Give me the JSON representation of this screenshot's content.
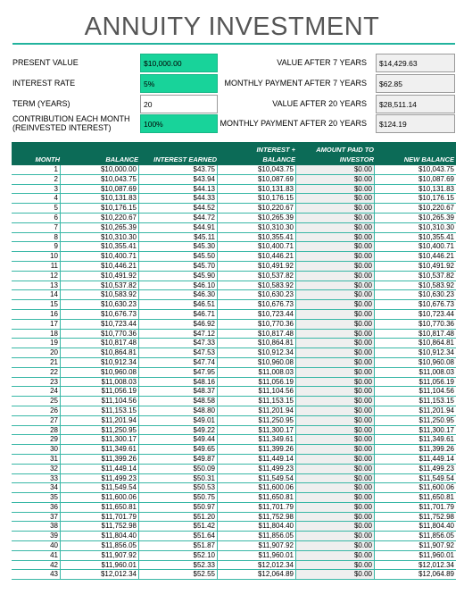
{
  "title": "ANNUITY INVESTMENT",
  "inputs": {
    "present_value_label": "PRESENT VALUE",
    "present_value": "$10,000.00",
    "interest_rate_label": "INTEREST RATE",
    "interest_rate": "5%",
    "term_label": "TERM (YEARS)",
    "term": "20",
    "contribution_label_1": "CONTRIBUTION EACH MONTH",
    "contribution_label_2": "(REINVESTED INTEREST)",
    "contribution": "100%"
  },
  "outputs": {
    "value_7_label": "VALUE AFTER 7 YEARS",
    "value_7": "$14,429.63",
    "payment_7_label": "MONTHLY PAYMENT AFTER 7 YEARS",
    "payment_7": "$62.85",
    "value_20_label": "VALUE AFTER 20 YEARS",
    "value_20": "$28,511.14",
    "payment_20_label": "MONTHLY PAYMENT AFTER 20 YEARS",
    "payment_20": "$124.19"
  },
  "table": {
    "headers": {
      "month": "MONTH",
      "balance": "BALANCE",
      "interest_earned": "INTEREST EARNED",
      "interest_balance_1": "INTEREST +",
      "interest_balance_2": "BALANCE",
      "paid_1": "AMOUNT PAID TO",
      "paid_2": "INVESTOR",
      "new_balance": "NEW BALANCE"
    },
    "rows": [
      [
        "1",
        "$10,000.00",
        "$43.75",
        "$10,043.75",
        "$0.00",
        "$10,043.75"
      ],
      [
        "2",
        "$10,043.75",
        "$43.94",
        "$10,087.69",
        "$0.00",
        "$10,087.69"
      ],
      [
        "3",
        "$10,087.69",
        "$44.13",
        "$10,131.83",
        "$0.00",
        "$10,131.83"
      ],
      [
        "4",
        "$10,131.83",
        "$44.33",
        "$10,176.15",
        "$0.00",
        "$10,176.15"
      ],
      [
        "5",
        "$10,176.15",
        "$44.52",
        "$10,220.67",
        "$0.00",
        "$10,220.67"
      ],
      [
        "6",
        "$10,220.67",
        "$44.72",
        "$10,265.39",
        "$0.00",
        "$10,265.39"
      ],
      [
        "7",
        "$10,265.39",
        "$44.91",
        "$10,310.30",
        "$0.00",
        "$10,310.30"
      ],
      [
        "8",
        "$10,310.30",
        "$45.11",
        "$10,355.41",
        "$0.00",
        "$10,355.41"
      ],
      [
        "9",
        "$10,355.41",
        "$45.30",
        "$10,400.71",
        "$0.00",
        "$10,400.71"
      ],
      [
        "10",
        "$10,400.71",
        "$45.50",
        "$10,446.21",
        "$0.00",
        "$10,446.21"
      ],
      [
        "11",
        "$10,446.21",
        "$45.70",
        "$10,491.92",
        "$0.00",
        "$10,491.92"
      ],
      [
        "12",
        "$10,491.92",
        "$45.90",
        "$10,537.82",
        "$0.00",
        "$10,537.82"
      ],
      [
        "13",
        "$10,537.82",
        "$46.10",
        "$10,583.92",
        "$0.00",
        "$10,583.92"
      ],
      [
        "14",
        "$10,583.92",
        "$46.30",
        "$10,630.23",
        "$0.00",
        "$10,630.23"
      ],
      [
        "15",
        "$10,630.23",
        "$46.51",
        "$10,676.73",
        "$0.00",
        "$10,676.73"
      ],
      [
        "16",
        "$10,676.73",
        "$46.71",
        "$10,723.44",
        "$0.00",
        "$10,723.44"
      ],
      [
        "17",
        "$10,723.44",
        "$46.92",
        "$10,770.36",
        "$0.00",
        "$10,770.36"
      ],
      [
        "18",
        "$10,770.36",
        "$47.12",
        "$10,817.48",
        "$0.00",
        "$10,817.48"
      ],
      [
        "19",
        "$10,817.48",
        "$47.33",
        "$10,864.81",
        "$0.00",
        "$10,864.81"
      ],
      [
        "20",
        "$10,864.81",
        "$47.53",
        "$10,912.34",
        "$0.00",
        "$10,912.34"
      ],
      [
        "21",
        "$10,912.34",
        "$47.74",
        "$10,960.08",
        "$0.00",
        "$10,960.08"
      ],
      [
        "22",
        "$10,960.08",
        "$47.95",
        "$11,008.03",
        "$0.00",
        "$11,008.03"
      ],
      [
        "23",
        "$11,008.03",
        "$48.16",
        "$11,056.19",
        "$0.00",
        "$11,056.19"
      ],
      [
        "24",
        "$11,056.19",
        "$48.37",
        "$11,104.56",
        "$0.00",
        "$11,104.56"
      ],
      [
        "25",
        "$11,104.56",
        "$48.58",
        "$11,153.15",
        "$0.00",
        "$11,153.15"
      ],
      [
        "26",
        "$11,153.15",
        "$48.80",
        "$11,201.94",
        "$0.00",
        "$11,201.94"
      ],
      [
        "27",
        "$11,201.94",
        "$49.01",
        "$11,250.95",
        "$0.00",
        "$11,250.95"
      ],
      [
        "28",
        "$11,250.95",
        "$49.22",
        "$11,300.17",
        "$0.00",
        "$11,300.17"
      ],
      [
        "29",
        "$11,300.17",
        "$49.44",
        "$11,349.61",
        "$0.00",
        "$11,349.61"
      ],
      [
        "30",
        "$11,349.61",
        "$49.65",
        "$11,399.26",
        "$0.00",
        "$11,399.26"
      ],
      [
        "31",
        "$11,399.26",
        "$49.87",
        "$11,449.14",
        "$0.00",
        "$11,449.14"
      ],
      [
        "32",
        "$11,449.14",
        "$50.09",
        "$11,499.23",
        "$0.00",
        "$11,499.23"
      ],
      [
        "33",
        "$11,499.23",
        "$50.31",
        "$11,549.54",
        "$0.00",
        "$11,549.54"
      ],
      [
        "34",
        "$11,549.54",
        "$50.53",
        "$11,600.06",
        "$0.00",
        "$11,600.06"
      ],
      [
        "35",
        "$11,600.06",
        "$50.75",
        "$11,650.81",
        "$0.00",
        "$11,650.81"
      ],
      [
        "36",
        "$11,650.81",
        "$50.97",
        "$11,701.79",
        "$0.00",
        "$11,701.79"
      ],
      [
        "37",
        "$11,701.79",
        "$51.20",
        "$11,752.98",
        "$0.00",
        "$11,752.98"
      ],
      [
        "38",
        "$11,752.98",
        "$51.42",
        "$11,804.40",
        "$0.00",
        "$11,804.40"
      ],
      [
        "39",
        "$11,804.40",
        "$51.64",
        "$11,856.05",
        "$0.00",
        "$11,856.05"
      ],
      [
        "40",
        "$11,856.05",
        "$51.87",
        "$11,907.92",
        "$0.00",
        "$11,907.92"
      ],
      [
        "41",
        "$11,907.92",
        "$52.10",
        "$11,960.01",
        "$0.00",
        "$11,960.01"
      ],
      [
        "42",
        "$11,960.01",
        "$52.33",
        "$12,012.34",
        "$0.00",
        "$12,012.34"
      ],
      [
        "43",
        "$12,012.34",
        "$52.55",
        "$12,064.89",
        "$0.00",
        "$12,064.89"
      ]
    ]
  }
}
